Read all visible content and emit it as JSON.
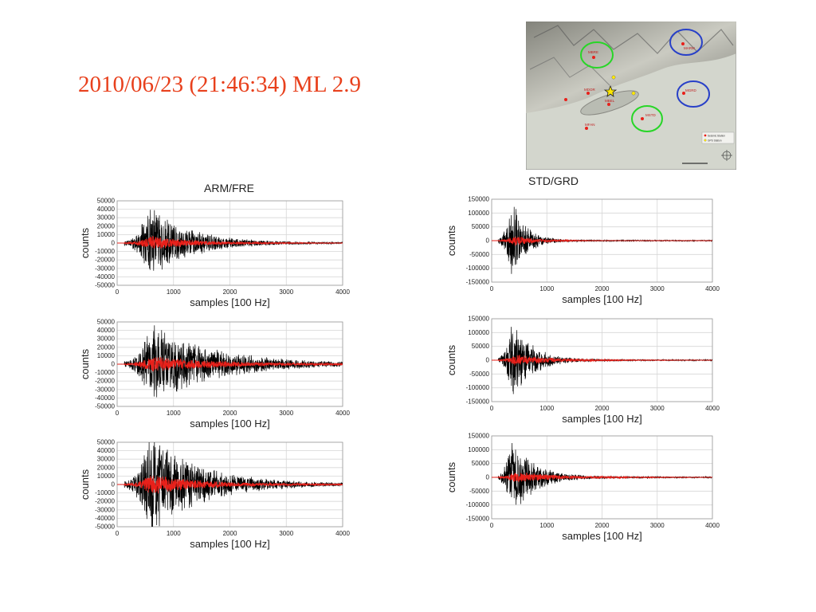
{
  "title": "2010/06/23 (21:46:34) ML 2.9",
  "columns": {
    "left": "ARM/FRE",
    "right": "STD/GRD"
  },
  "map": {
    "station_labels": [
      "MBRE",
      "MARM",
      "MSTD",
      "MFAN",
      "MDOR",
      "MBEL",
      "MGRD"
    ],
    "legend": [
      "Seismic Station",
      "GPS Station"
    ]
  },
  "colors": {
    "title": "#e8401c",
    "trace_black": "#000000",
    "trace_red": "#e8201a",
    "green_circle": "#27d627",
    "blue_circle": "#2840c8"
  },
  "chart_data": [
    {
      "type": "line",
      "xlabel": "samples [100 Hz]",
      "ylabel": "counts",
      "xlim": [
        0,
        4000
      ],
      "ylim": [
        -50000,
        50000
      ],
      "yticks": [
        50000,
        40000,
        30000,
        20000,
        10000,
        0,
        -10000,
        -20000,
        -30000,
        -40000,
        -50000
      ],
      "xticks": [
        0,
        1000,
        2000,
        3000,
        4000
      ],
      "series": [
        {
          "color": "#000000",
          "onset": 130,
          "peak_sample": 580,
          "peak": 45000,
          "decay": 700
        },
        {
          "color": "#e8201a",
          "onset": 130,
          "peak_sample": 600,
          "peak": 9000,
          "decay": 800
        }
      ]
    },
    {
      "type": "line",
      "xlabel": "samples [100 Hz]",
      "ylabel": "counts",
      "xlim": [
        0,
        4000
      ],
      "ylim": [
        -50000,
        50000
      ],
      "yticks": [
        50000,
        40000,
        30000,
        20000,
        10000,
        0,
        -10000,
        -20000,
        -30000,
        -40000,
        -50000
      ],
      "xticks": [
        0,
        1000,
        2000,
        3000,
        4000
      ],
      "series": [
        {
          "color": "#000000",
          "onset": 130,
          "peak_sample": 620,
          "peak": 50000,
          "decay": 1100
        },
        {
          "color": "#e8201a",
          "onset": 130,
          "peak_sample": 600,
          "peak": 10000,
          "decay": 1300
        }
      ]
    },
    {
      "type": "line",
      "xlabel": "samples [100 Hz]",
      "ylabel": "counts",
      "xlim": [
        0,
        4000
      ],
      "ylim": [
        -50000,
        50000
      ],
      "yticks": [
        50000,
        40000,
        30000,
        20000,
        10000,
        0,
        -10000,
        -20000,
        -30000,
        -40000,
        -50000
      ],
      "xticks": [
        0,
        1000,
        2000,
        3000,
        4000
      ],
      "series": [
        {
          "color": "#000000",
          "onset": 130,
          "peak_sample": 600,
          "peak": 60000,
          "decay": 900
        },
        {
          "color": "#e8201a",
          "onset": 130,
          "peak_sample": 600,
          "peak": 12000,
          "decay": 1000
        }
      ]
    },
    {
      "type": "line",
      "xlabel": "samples [100 Hz]",
      "ylabel": "counts",
      "xlim": [
        0,
        4000
      ],
      "ylim": [
        -150000,
        150000
      ],
      "yticks": [
        150000,
        100000,
        50000,
        0,
        -50000,
        -100000,
        -150000
      ],
      "xticks": [
        0,
        1000,
        2000,
        3000,
        4000
      ],
      "series": [
        {
          "color": "#000000",
          "onset": 120,
          "peak_sample": 380,
          "peak": 145000,
          "decay": 250
        },
        {
          "color": "#e8201a",
          "onset": 120,
          "peak_sample": 420,
          "peak": 20000,
          "decay": 400
        }
      ]
    },
    {
      "type": "line",
      "xlabel": "samples [100 Hz]",
      "ylabel": "counts",
      "xlim": [
        0,
        4000
      ],
      "ylim": [
        -150000,
        150000
      ],
      "yticks": [
        150000,
        100000,
        50000,
        0,
        -50000,
        -100000,
        -150000
      ],
      "xticks": [
        0,
        1000,
        2000,
        3000,
        4000
      ],
      "series": [
        {
          "color": "#000000",
          "onset": 120,
          "peak_sample": 380,
          "peak": 150000,
          "decay": 350
        },
        {
          "color": "#e8201a",
          "onset": 120,
          "peak_sample": 420,
          "peak": 22000,
          "decay": 700
        }
      ]
    },
    {
      "type": "line",
      "xlabel": "samples [100 Hz]",
      "ylabel": "counts",
      "xlim": [
        0,
        4000
      ],
      "ylim": [
        -150000,
        150000
      ],
      "yticks": [
        150000,
        100000,
        50000,
        0,
        -50000,
        -100000,
        -150000
      ],
      "xticks": [
        0,
        1000,
        2000,
        3000,
        4000
      ],
      "series": [
        {
          "color": "#000000",
          "onset": 120,
          "peak_sample": 360,
          "peak": 150000,
          "decay": 400
        },
        {
          "color": "#e8201a",
          "onset": 120,
          "peak_sample": 420,
          "peak": 22000,
          "decay": 800
        }
      ]
    }
  ]
}
